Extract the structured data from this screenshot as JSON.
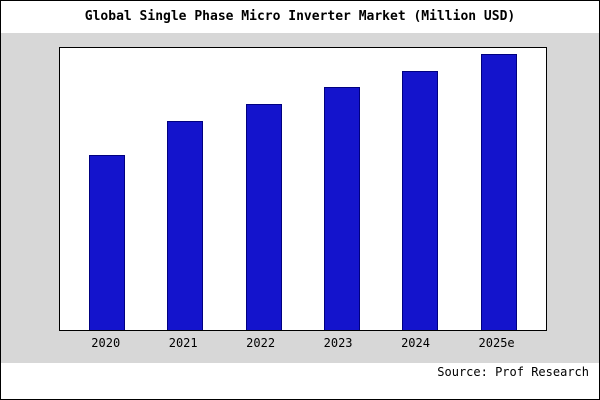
{
  "chart_data": {
    "type": "bar",
    "title": "Global Single Phase Micro Inverter Market (Million USD)",
    "categories": [
      "2020",
      "2021",
      "2022",
      "2023",
      "2024",
      "2025e"
    ],
    "values": [
      62,
      74,
      80,
      86,
      92,
      98
    ],
    "values_estimated": true,
    "xlabel": "",
    "ylabel": "",
    "ylim": [
      0,
      100
    ],
    "grid": false,
    "legend": false,
    "bar_color": "#1414cc",
    "bar_border_color": "#000080"
  },
  "source": "Source: Prof Research",
  "colors": {
    "panel_bg": "#d7d7d7",
    "plot_bg": "#ffffff",
    "frame_border": "#000000"
  }
}
